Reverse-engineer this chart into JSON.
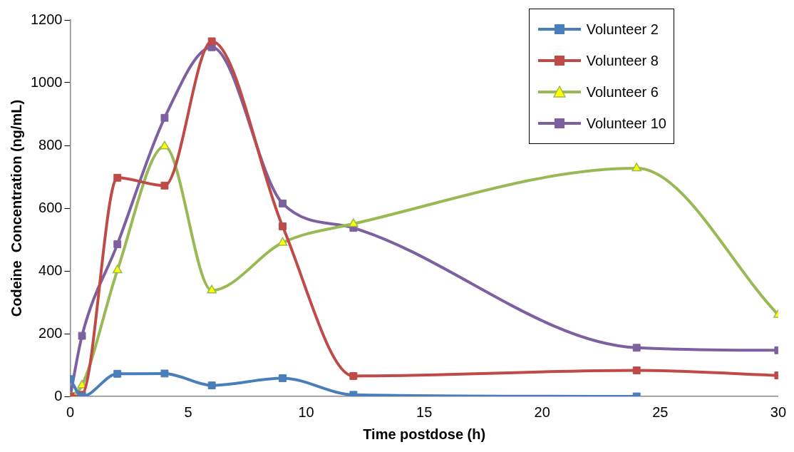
{
  "chart_data": {
    "type": "line",
    "xlabel": "Time postdose (h)",
    "ylabel": "Codeine  Concentration (ng/mL)",
    "x": [
      0,
      0.5,
      2,
      4,
      6,
      9,
      12,
      24,
      30
    ],
    "series": [
      {
        "name": "Volunteer 2",
        "color": "#4a7ebb",
        "marker": "square",
        "values": [
          55,
          0,
          72,
          73,
          35,
          58,
          5,
          0,
          null
        ]
      },
      {
        "name": "Volunteer 8",
        "color": "#be4b48",
        "marker": "square",
        "values": [
          0,
          5,
          697,
          672,
          1132,
          542,
          65,
          83,
          67
        ]
      },
      {
        "name": "Volunteer 6",
        "color": "#98b954",
        "marker": "triangle",
        "values": [
          0,
          35,
          402,
          797,
          338,
          490,
          550,
          727,
          260
        ]
      },
      {
        "name": "Volunteer 10",
        "color": "#7d60a0",
        "marker": "square",
        "values": [
          0,
          193,
          485,
          888,
          1113,
          615,
          537,
          155,
          147
        ]
      }
    ],
    "xlim": [
      0,
      30
    ],
    "xticks": [
      0,
      5,
      10,
      15,
      20,
      25,
      30
    ],
    "ylim": [
      0,
      1200
    ],
    "yticks": [
      0,
      200,
      400,
      600,
      800,
      1000,
      1200
    ],
    "grid": false,
    "legend": "top right",
    "line_style": "solid"
  }
}
